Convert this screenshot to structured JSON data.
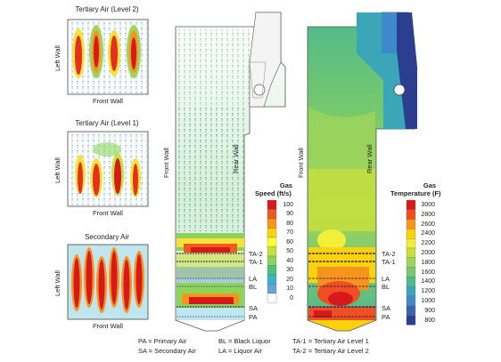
{
  "side_panels": [
    {
      "title": "Tertiary Air (Level 2)",
      "left_label": "Left Wall",
      "bottom_label": "Front Wall"
    },
    {
      "title": "Tertiary Air (Level 1)",
      "left_label": "Left Wall",
      "bottom_label": "Front Wall"
    },
    {
      "title": "Secondary Air",
      "left_label": "Left Wall",
      "bottom_label": "Front Wall"
    }
  ],
  "speed_diagram": {
    "front_wall_label": "Front Wall",
    "rear_wall_label": "Rear Wall",
    "legend_title_line1": "Gas",
    "legend_title_line2": "Speed (ft/s)",
    "legend_values": [
      "100",
      "90",
      "80",
      "70",
      "60",
      "50",
      "40",
      "30",
      "20",
      "10",
      "0"
    ],
    "legend_colors": [
      "#d7191c",
      "#f05a1e",
      "#f7941d",
      "#fdd10b",
      "#ffff33",
      "#c6e23a",
      "#8cd35a",
      "#4fc07a",
      "#39b5c9",
      "#6f9fd8",
      "#ffffff"
    ],
    "levels": [
      "TA-2",
      "TA-1",
      "LA",
      "BL",
      "SA",
      "PA"
    ]
  },
  "temp_diagram": {
    "front_wall_label": "Front Wall",
    "rear_wall_label": "Rear Wall",
    "legend_title_line1": "Gas",
    "legend_title_line2": "Temperature (F)",
    "legend_values": [
      "3000",
      "2800",
      "2600",
      "2400",
      "2200",
      "2000",
      "1800",
      "1600",
      "1400",
      "1200",
      "1000",
      "900",
      "800"
    ],
    "legend_colors": [
      "#d7191c",
      "#f04e23",
      "#f7941d",
      "#fdd10b",
      "#f2ef3a",
      "#c9e03c",
      "#9fd55a",
      "#74c86f",
      "#4fb98d",
      "#3aa6b8",
      "#3d89c9",
      "#3a63b0",
      "#2c3e8f"
    ],
    "levels": [
      "TA-2",
      "TA-1",
      "LA",
      "BL",
      "SA",
      "PA"
    ]
  },
  "footnote": {
    "col1": [
      "PA = Primary Air",
      "SA = Secondary Air"
    ],
    "col2": [
      "BL = Black Liquor",
      "LA = Liquor Air"
    ],
    "col3": [
      "TA-1 = Tertiary Air Level 1",
      "TA-2 = Tertiary Air Level 2"
    ]
  }
}
